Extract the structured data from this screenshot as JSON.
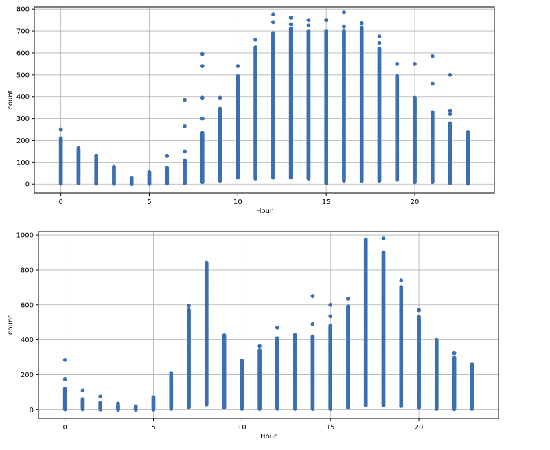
{
  "chart_data": [
    {
      "type": "scatter",
      "xlabel": "Hour",
      "ylabel": "count",
      "xlim": [
        -1.5,
        24.5
      ],
      "ylim": [
        -40,
        810
      ],
      "xticks": [
        0,
        5,
        10,
        15,
        20
      ],
      "yticks": [
        0,
        100,
        200,
        300,
        400,
        500,
        600,
        700,
        800
      ],
      "grid": true,
      "marker_color": "#3a70b0",
      "series": [
        {
          "x": [
            0,
            1,
            2,
            3,
            4,
            5,
            6,
            7,
            8,
            9,
            10,
            11,
            12,
            13,
            14,
            15,
            16,
            17,
            18,
            19,
            20,
            21,
            22,
            23
          ],
          "min": [
            3,
            3,
            3,
            2,
            1,
            1,
            2,
            3,
            10,
            15,
            30,
            25,
            30,
            30,
            25,
            5,
            15,
            15,
            15,
            20,
            10,
            10,
            5,
            2
          ],
          "dense_max": [
            210,
            165,
            130,
            80,
            30,
            50,
            75,
            110,
            235,
            345,
            495,
            625,
            690,
            710,
            700,
            700,
            700,
            715,
            620,
            495,
            395,
            330,
            280,
            240
          ],
          "outliers": [
            {
              "x": 0,
              "y": 250
            },
            {
              "x": 5,
              "y": 55
            },
            {
              "x": 6,
              "y": 130
            },
            {
              "x": 7,
              "y": 150
            },
            {
              "x": 7,
              "y": 265
            },
            {
              "x": 7,
              "y": 385
            },
            {
              "x": 8,
              "y": 300
            },
            {
              "x": 8,
              "y": 395
            },
            {
              "x": 8,
              "y": 540
            },
            {
              "x": 8,
              "y": 595
            },
            {
              "x": 9,
              "y": 395
            },
            {
              "x": 10,
              "y": 540
            },
            {
              "x": 11,
              "y": 660
            },
            {
              "x": 12,
              "y": 740
            },
            {
              "x": 12,
              "y": 775
            },
            {
              "x": 13,
              "y": 730
            },
            {
              "x": 13,
              "y": 760
            },
            {
              "x": 14,
              "y": 725
            },
            {
              "x": 14,
              "y": 750
            },
            {
              "x": 15,
              "y": 750
            },
            {
              "x": 16,
              "y": 720
            },
            {
              "x": 16,
              "y": 785
            },
            {
              "x": 17,
              "y": 735
            },
            {
              "x": 18,
              "y": 645
            },
            {
              "x": 18,
              "y": 675
            },
            {
              "x": 19,
              "y": 550
            },
            {
              "x": 20,
              "y": 550
            },
            {
              "x": 21,
              "y": 460
            },
            {
              "x": 21,
              "y": 585
            },
            {
              "x": 22,
              "y": 320
            },
            {
              "x": 22,
              "y": 335
            },
            {
              "x": 22,
              "y": 500
            }
          ]
        }
      ]
    },
    {
      "type": "scatter",
      "xlabel": "Hour",
      "ylabel": "count",
      "xlim": [
        -1.5,
        24.5
      ],
      "ylim": [
        -50,
        1020
      ],
      "xticks": [
        0,
        5,
        10,
        15,
        20
      ],
      "yticks": [
        0,
        200,
        400,
        600,
        800,
        1000
      ],
      "grid": true,
      "marker_color": "#3a70b0",
      "series": [
        {
          "x": [
            0,
            1,
            2,
            3,
            4,
            5,
            6,
            7,
            8,
            9,
            10,
            11,
            12,
            13,
            14,
            15,
            16,
            17,
            18,
            19,
            20,
            21,
            22,
            23
          ],
          "min": [
            2,
            2,
            1,
            1,
            1,
            2,
            5,
            15,
            30,
            10,
            5,
            5,
            5,
            5,
            5,
            5,
            10,
            25,
            25,
            20,
            10,
            5,
            5,
            5
          ],
          "dense_max": [
            120,
            60,
            40,
            20,
            20,
            70,
            210,
            570,
            840,
            425,
            280,
            340,
            410,
            430,
            420,
            480,
            590,
            975,
            900,
            700,
            530,
            400,
            300,
            260
          ],
          "outliers": [
            {
              "x": 0,
              "y": 175
            },
            {
              "x": 0,
              "y": 285
            },
            {
              "x": 1,
              "y": 110
            },
            {
              "x": 2,
              "y": 75
            },
            {
              "x": 3,
              "y": 35
            },
            {
              "x": 7,
              "y": 595
            },
            {
              "x": 11,
              "y": 365
            },
            {
              "x": 12,
              "y": 470
            },
            {
              "x": 14,
              "y": 490
            },
            {
              "x": 14,
              "y": 650
            },
            {
              "x": 15,
              "y": 535
            },
            {
              "x": 15,
              "y": 600
            },
            {
              "x": 16,
              "y": 635
            },
            {
              "x": 18,
              "y": 980
            },
            {
              "x": 19,
              "y": 740
            },
            {
              "x": 20,
              "y": 570
            },
            {
              "x": 22,
              "y": 325
            }
          ]
        }
      ]
    }
  ]
}
